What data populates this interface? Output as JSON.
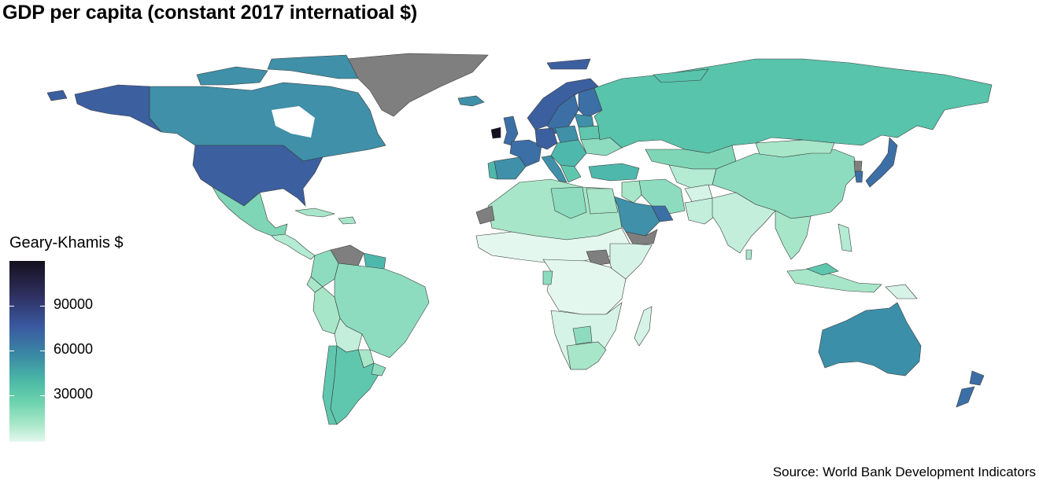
{
  "title": "GDP per capita (constant 2017 internatioal $)",
  "legend": {
    "title": "Geary-Khamis $",
    "ticks": [
      "90000",
      "60000",
      "30000"
    ],
    "range": [
      0,
      114000
    ],
    "colors": [
      "#e3f7ee",
      "#a7e6c8",
      "#6cd3ad",
      "#4ab8a6",
      "#3a88a5",
      "#3a58a0",
      "#2e2e5c",
      "#15101e"
    ]
  },
  "missing_color": "#7f7f7f",
  "source": "Source: World Bank Development Indicators"
}
